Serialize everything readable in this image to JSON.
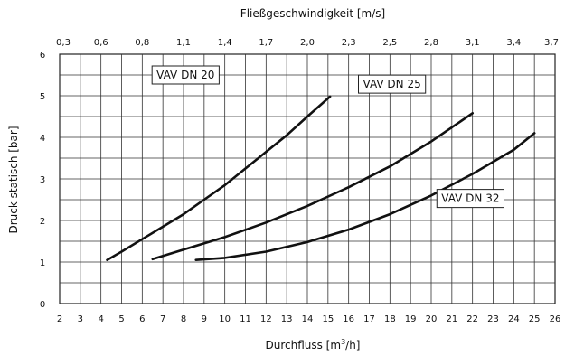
{
  "chart_data": {
    "type": "line",
    "top_axis": {
      "label": "Fließgeschwindigkeit [m/s]",
      "ticks": [
        "0,3",
        "0,6",
        "0,8",
        "1,1",
        "1,4",
        "1,7",
        "2,0",
        "2,3",
        "2,5",
        "2,8",
        "3,1",
        "3,4",
        "3,7"
      ]
    },
    "xlabel": "Durchfluss [m",
    "xlabel_sup": "3",
    "xlabel_suffix": "/h]",
    "ylabel": "Druck statisch [bar]",
    "xlim": [
      2,
      26
    ],
    "ylim": [
      0,
      6
    ],
    "x_ticks": [
      2,
      3,
      4,
      5,
      6,
      7,
      8,
      9,
      10,
      11,
      12,
      13,
      14,
      15,
      16,
      17,
      18,
      19,
      20,
      21,
      22,
      23,
      24,
      25,
      26
    ],
    "y_ticks": [
      0,
      1,
      2,
      3,
      4,
      5,
      6
    ],
    "x_grid_step": 1,
    "y_grid_step": 0.5,
    "grid": true,
    "series": [
      {
        "name": "VAV DN 20",
        "x": [
          4.3,
          5.0,
          6.0,
          7.0,
          8.0,
          9.0,
          10.0,
          11.0,
          12.0,
          13.0,
          14.0,
          15.1
        ],
        "y": [
          1.05,
          1.25,
          1.55,
          1.85,
          2.15,
          2.5,
          2.85,
          3.25,
          3.65,
          4.05,
          4.5,
          4.98
        ]
      },
      {
        "name": "VAV DN 25",
        "x": [
          6.5,
          8.0,
          10.0,
          12.0,
          14.0,
          16.0,
          18.0,
          20.0,
          22.0
        ],
        "y": [
          1.07,
          1.3,
          1.6,
          1.95,
          2.35,
          2.8,
          3.3,
          3.9,
          4.58
        ]
      },
      {
        "name": "VAV DN 32",
        "x": [
          8.6,
          10.0,
          12.0,
          14.0,
          16.0,
          18.0,
          20.0,
          22.0,
          24.0,
          25.0
        ],
        "y": [
          1.05,
          1.1,
          1.25,
          1.48,
          1.78,
          2.15,
          2.6,
          3.12,
          3.7,
          4.1
        ]
      }
    ],
    "series_label_anchor": [
      {
        "x": 8.1,
        "y": 5.5
      },
      {
        "x": 18.1,
        "y": 5.28
      },
      {
        "x": 21.9,
        "y": 2.53
      }
    ]
  }
}
